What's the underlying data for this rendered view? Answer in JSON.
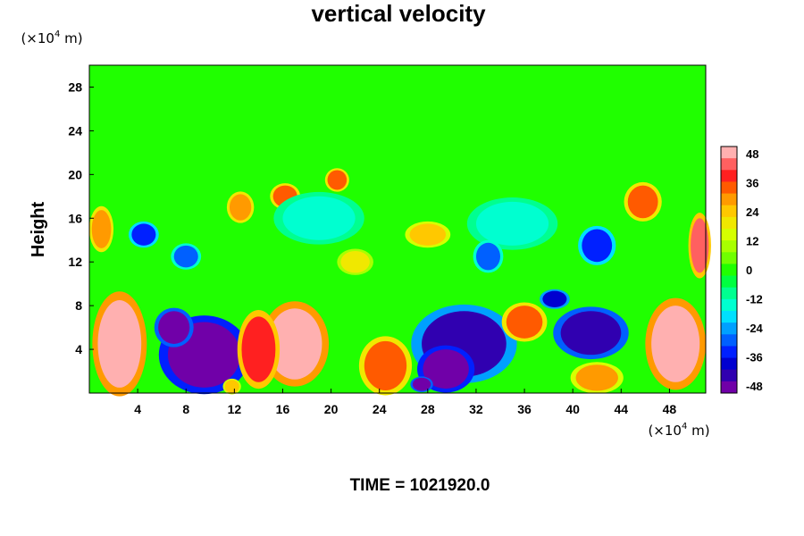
{
  "chart_data": {
    "type": "heatmap",
    "title": "vertical velocity",
    "ylabel": "Height",
    "x_unit": {
      "prefix": "(×10",
      "exp": "4",
      "suffix": " m)"
    },
    "y_unit": {
      "prefix": "(×10",
      "exp": "4",
      "suffix": " m)"
    },
    "xlim": [
      0,
      51
    ],
    "ylim": [
      0,
      30
    ],
    "x_ticks": [
      4,
      8,
      12,
      16,
      20,
      24,
      28,
      32,
      36,
      40,
      44,
      48
    ],
    "y_ticks": [
      4,
      8,
      12,
      16,
      20,
      24,
      28
    ],
    "x_tick_labels": [
      "4",
      "8",
      "12",
      "16",
      "20",
      "24",
      "28",
      "32",
      "36",
      "40",
      "44",
      "48"
    ],
    "y_tick_labels": [
      "4",
      "8",
      "12",
      "16",
      "20",
      "24",
      "28"
    ],
    "colorbar": {
      "range": [
        -48,
        48
      ],
      "ticks": [
        48,
        36,
        24,
        12,
        0,
        -12,
        -24,
        -36,
        -48
      ],
      "tick_labels": [
        "48",
        "36",
        "24",
        "12",
        "0",
        "-12",
        "-24",
        "-36",
        "-48"
      ],
      "colors_high_to_low": [
        "#ffb0b0",
        "#ff6060",
        "#ff2020",
        "#ff5a00",
        "#ff9a00",
        "#ffc800",
        "#f0e800",
        "#d6ff00",
        "#a8ff00",
        "#70ff00",
        "#20ff00",
        "#00ff40",
        "#00ff90",
        "#00ffd0",
        "#00e0ff",
        "#00a0ff",
        "#0060ff",
        "#0020ff",
        "#0000d0",
        "#3000b0",
        "#7000a8"
      ]
    },
    "background_value": 2,
    "features": [
      {
        "x": 2.5,
        "y": 4.5,
        "w": 3.6,
        "h": 8,
        "value": 50
      },
      {
        "x": 48.5,
        "y": 4.5,
        "w": 4,
        "h": 7,
        "value": 50
      },
      {
        "x": 9.5,
        "y": 3.5,
        "w": 6,
        "h": 6,
        "value": -55
      },
      {
        "x": 7,
        "y": 6,
        "w": 2.6,
        "h": 3,
        "value": -50
      },
      {
        "x": 31,
        "y": 4.5,
        "w": 7,
        "h": 6,
        "value": -42
      },
      {
        "x": 29.5,
        "y": 2.2,
        "w": 3.8,
        "h": 3.6,
        "value": -55
      },
      {
        "x": 41.5,
        "y": 5.5,
        "w": 5,
        "h": 4,
        "value": -45
      },
      {
        "x": 17,
        "y": 4.5,
        "w": 4.5,
        "h": 6.5,
        "value": 46
      },
      {
        "x": 14,
        "y": 4,
        "w": 2.8,
        "h": 6,
        "value": 40
      },
      {
        "x": 24.5,
        "y": 2.5,
        "w": 3.5,
        "h": 4.5,
        "value": 32
      },
      {
        "x": 36,
        "y": 6.5,
        "w": 3,
        "h": 3,
        "value": 34
      },
      {
        "x": 42,
        "y": 1.4,
        "w": 3.5,
        "h": 2.4,
        "value": 28
      },
      {
        "x": 12.5,
        "y": 17,
        "w": 1.8,
        "h": 2.4,
        "value": 30
      },
      {
        "x": 16.2,
        "y": 18,
        "w": 2,
        "h": 2,
        "value": 34
      },
      {
        "x": 20.5,
        "y": 19.5,
        "w": 1.6,
        "h": 1.8,
        "value": 32
      },
      {
        "x": 45.8,
        "y": 17.5,
        "w": 2.5,
        "h": 3,
        "value": 36
      },
      {
        "x": 50.5,
        "y": 13.5,
        "w": 1.5,
        "h": 5,
        "value": 44
      },
      {
        "x": 1,
        "y": 15,
        "w": 1.6,
        "h": 3.5,
        "value": 30
      },
      {
        "x": 4.5,
        "y": 14.5,
        "w": 2,
        "h": 2,
        "value": -34
      },
      {
        "x": 8,
        "y": 12.5,
        "w": 2,
        "h": 2,
        "value": -28
      },
      {
        "x": 19,
        "y": 16,
        "w": 6,
        "h": 4,
        "value": -12
      },
      {
        "x": 35,
        "y": 15.5,
        "w": 6,
        "h": 4,
        "value": -14
      },
      {
        "x": 42,
        "y": 13.5,
        "w": 2.5,
        "h": 3,
        "value": -34
      },
      {
        "x": 33,
        "y": 12.5,
        "w": 2,
        "h": 2.5,
        "value": -28
      },
      {
        "x": 28,
        "y": 14.5,
        "w": 3,
        "h": 2,
        "value": 22
      },
      {
        "x": 22,
        "y": 12,
        "w": 2.4,
        "h": 2,
        "value": 20
      },
      {
        "x": 38.5,
        "y": 8.6,
        "w": 2,
        "h": 1.5,
        "value": -40
      },
      {
        "x": 27.5,
        "y": 0.8,
        "w": 1.5,
        "h": 1.2,
        "value": -46
      },
      {
        "x": 11.8,
        "y": 0.6,
        "w": 1.2,
        "h": 1.2,
        "value": 24
      }
    ],
    "time_label": "TIME = 1021920.0"
  }
}
